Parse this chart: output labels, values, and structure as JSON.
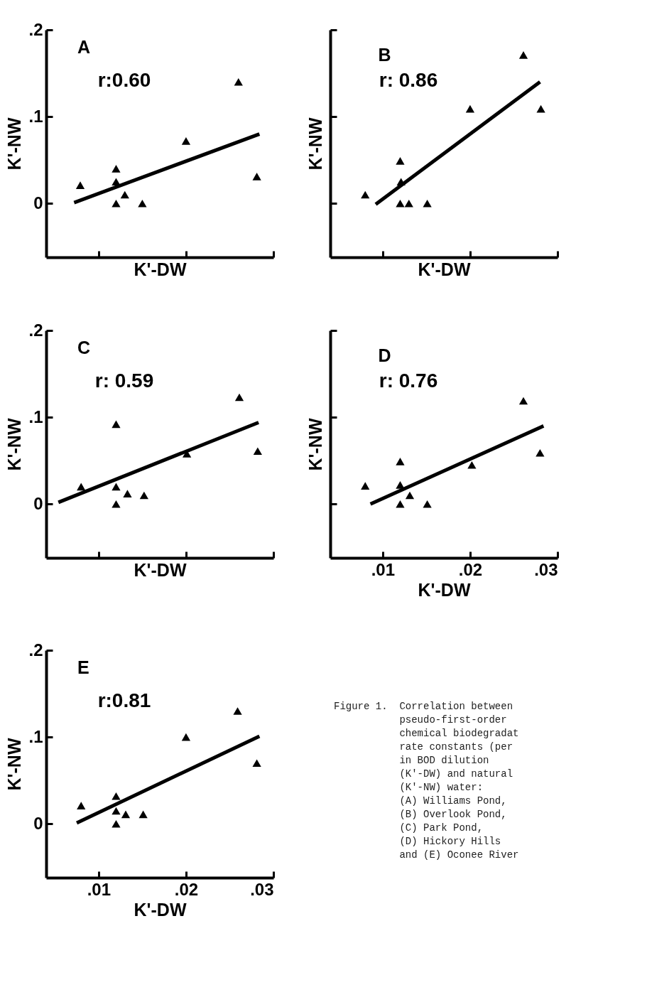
{
  "chart_data": [
    {
      "type": "scatter",
      "title": "A",
      "xlabel": "K'-DW",
      "ylabel": "K'-NW",
      "annotations": [
        "r:0.60"
      ],
      "tick_labels": "y",
      "xlim": [
        0.004,
        0.03
      ],
      "ylim": [
        -0.062,
        0.2
      ],
      "xticks": [
        0.01,
        0.02,
        0.03
      ],
      "yticks": [
        {
          "value": 0,
          "label": "0"
        },
        {
          "value": 0.1,
          "label": ".1"
        },
        {
          "value": 0.2,
          "label": ".2"
        }
      ],
      "series": [
        {
          "marker": "triangle",
          "color": "#000000",
          "x": [
            0.0079,
            0.012,
            0.012,
            0.012,
            0.013,
            0.015,
            0.02,
            0.026,
            0.0281
          ],
          "values": [
            0.021,
            0.04,
            0.025,
            0,
            0.01,
            0,
            0.072,
            0.14,
            0.031
          ]
        },
        {
          "type": "line",
          "color": "#000000",
          "x": [
            0.0072,
            0.0284
          ],
          "values": [
            0.001,
            0.08
          ]
        }
      ]
    },
    {
      "type": "scatter",
      "title": "B",
      "xlabel": "K'-DW",
      "ylabel": "K'-NW",
      "annotations": [
        "r: 0.86"
      ],
      "tick_labels": false,
      "xlim": [
        0.004,
        0.03
      ],
      "ylim": [
        -0.062,
        0.2
      ],
      "xticks": [
        0.01,
        0.02,
        0.03
      ],
      "yticks": [
        0,
        0.1,
        0.2
      ],
      "series": [
        {
          "marker": "triangle",
          "color": "#000000",
          "x": [
            0.008,
            0.012,
            0.0121,
            0.012,
            0.013,
            0.0151,
            0.02,
            0.0261,
            0.0281
          ],
          "values": [
            0.01,
            0.049,
            0.025,
            0,
            0,
            0,
            0.109,
            0.171,
            0.109
          ]
        },
        {
          "type": "line",
          "color": "#000000",
          "x": [
            0.0092,
            0.028
          ],
          "values": [
            -0.001,
            0.14
          ]
        }
      ]
    },
    {
      "type": "scatter",
      "title": "C",
      "xlabel": "K'-DW",
      "ylabel": "K'-NW",
      "annotations": [
        "r: 0.59"
      ],
      "tick_labels": "y",
      "xlim": [
        0.004,
        0.03
      ],
      "ylim": [
        -0.062,
        0.2
      ],
      "xticks": [
        0.01,
        0.02,
        0.03
      ],
      "yticks": [
        {
          "value": 0,
          "label": "0"
        },
        {
          "value": 0.1,
          "label": ".1"
        },
        {
          "value": 0.2,
          "label": ".2"
        }
      ],
      "series": [
        {
          "marker": "triangle",
          "color": "#000000",
          "x": [
            0.008,
            0.012,
            0.012,
            0.012,
            0.0133,
            0.0152,
            0.0201,
            0.0261,
            0.0282
          ],
          "values": [
            0.02,
            0.092,
            0.02,
            0,
            0.012,
            0.01,
            0.058,
            0.123,
            0.061
          ]
        },
        {
          "type": "line",
          "color": "#000000",
          "x": [
            0.0054,
            0.0283
          ],
          "values": [
            0.002,
            0.094
          ]
        }
      ]
    },
    {
      "type": "scatter",
      "title": "D",
      "xlabel": "K'-DW",
      "ylabel": "K'-NW",
      "annotations": [
        "r: 0.76"
      ],
      "tick_labels": "x",
      "xlim": [
        0.004,
        0.03
      ],
      "ylim": [
        -0.062,
        0.2
      ],
      "xticks": [
        {
          "value": 0.01,
          "label": ".01"
        },
        {
          "value": 0.02,
          "label": ".02"
        },
        {
          "value": 0.03,
          "label": ".03"
        }
      ],
      "yticks": [
        0,
        0.1,
        0.2
      ],
      "series": [
        {
          "marker": "triangle",
          "color": "#000000",
          "x": [
            0.008,
            0.012,
            0.012,
            0.012,
            0.0131,
            0.0151,
            0.0202,
            0.0261,
            0.028
          ],
          "values": [
            0.021,
            0.049,
            0.022,
            0,
            0.01,
            0,
            0.045,
            0.119,
            0.059
          ]
        },
        {
          "type": "line",
          "color": "#000000",
          "x": [
            0.0086,
            0.0284
          ],
          "values": [
            0,
            0.09
          ]
        }
      ]
    },
    {
      "type": "scatter",
      "title": "E",
      "xlabel": "K'-DW",
      "ylabel": "K'-NW",
      "annotations": [
        "r:0.81",
        "Figure 1.  Correlation between\n           pseudo-first-order\n           chemical biodegradat\n           rate constants (per\n           in BOD dilution\n           (K'-DW) and natural\n           (K'-NW) water:\n           (A) Williams Pond,\n           (B) Overlook Pond,\n           (C) Park Pond,\n           (D) Hickory Hills\n           and (E) Oconee River"
      ],
      "xlim": [
        0.004,
        0.03
      ],
      "ylim": [
        -0.062,
        0.2
      ],
      "xticks": [
        {
          "value": 0.01,
          "label": ".01"
        },
        {
          "value": 0.02,
          "label": ".02"
        },
        {
          "value": 0.03,
          "label": ".03"
        }
      ],
      "yticks": [
        {
          "value": 0,
          "label": "0"
        },
        {
          "value": 0.1,
          "label": ".1"
        },
        {
          "value": 0.2,
          "label": ".2"
        }
      ],
      "series": [
        {
          "marker": "triangle",
          "color": "#000000",
          "x": [
            0.008,
            0.012,
            0.012,
            0.012,
            0.0131,
            0.0151,
            0.02,
            0.0259,
            0.0281
          ],
          "values": [
            0.021,
            0.032,
            0.015,
            0,
            0.011,
            0.011,
            0.1,
            0.13,
            0.07
          ]
        },
        {
          "type": "line",
          "color": "#000000",
          "x": [
            0.0075,
            0.0284
          ],
          "values": [
            0.001,
            0.101
          ]
        }
      ]
    }
  ]
}
